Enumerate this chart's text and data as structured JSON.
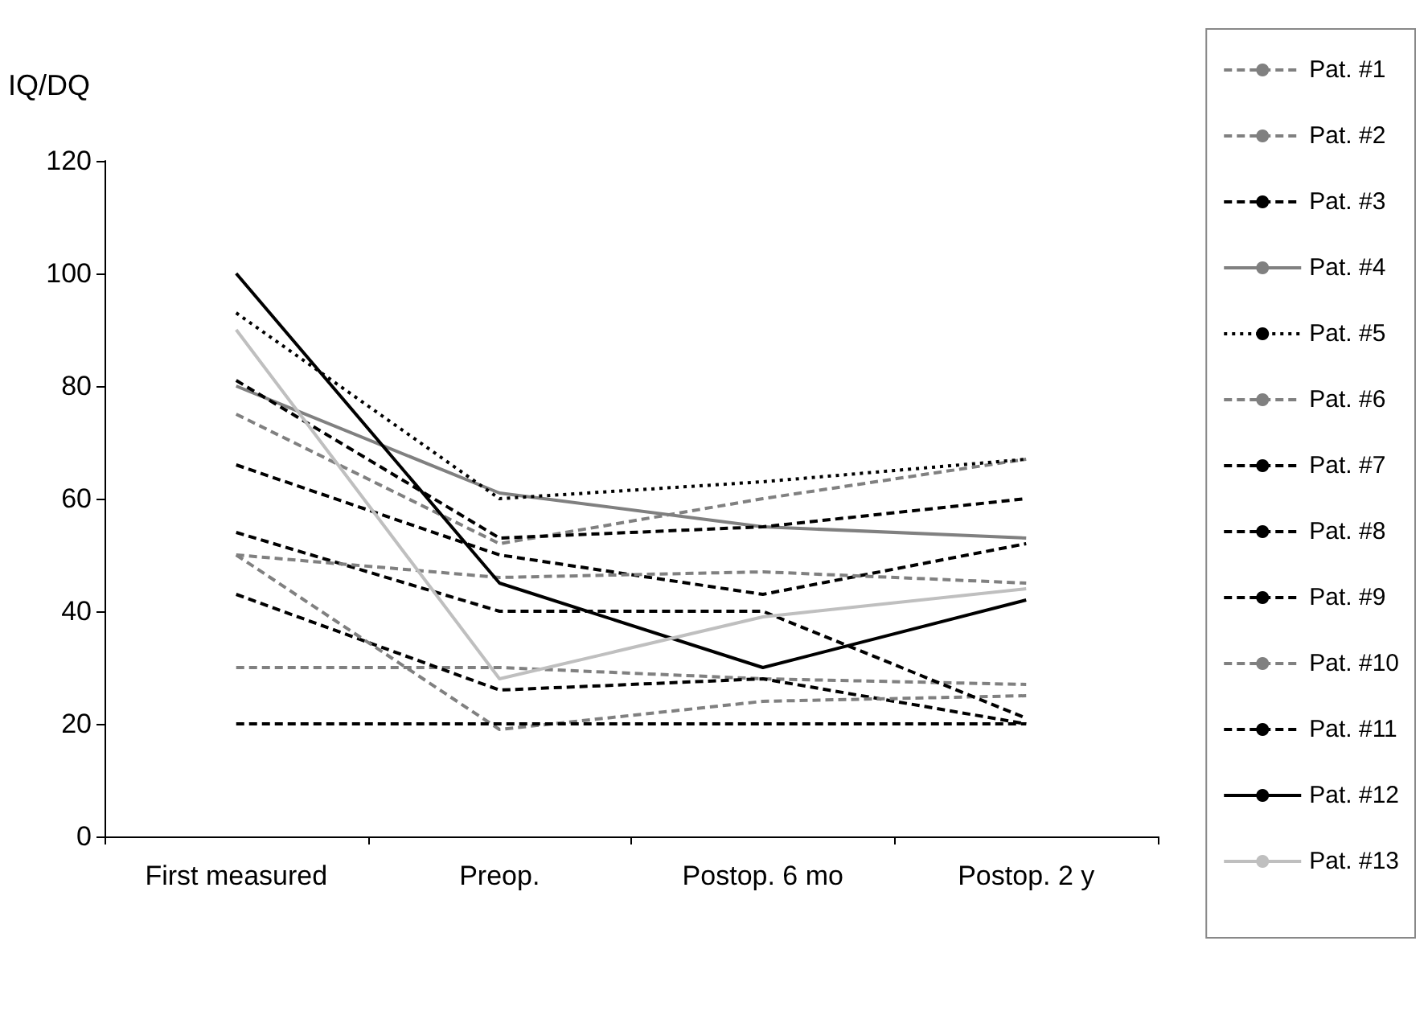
{
  "chart_data": {
    "type": "line",
    "ylabel": "IQ/DQ",
    "categories": [
      "First measured",
      "Preop.",
      "Postop. 6 mo",
      "Postop. 2 y"
    ],
    "ylim": [
      0,
      120
    ],
    "yticks": [
      0,
      20,
      40,
      60,
      80,
      100,
      120
    ],
    "grid": false,
    "legend": "right",
    "marker": "none",
    "series": [
      {
        "name": "Pat. #1",
        "color": "#808080",
        "line_style": "dashed",
        "values": [
          75,
          52,
          60,
          67
        ]
      },
      {
        "name": "Pat. #2",
        "color": "#808080",
        "line_style": "dashed",
        "values": [
          30,
          30,
          28,
          27
        ]
      },
      {
        "name": "Pat. #3",
        "color": "#000000",
        "line_style": "dashed",
        "values": [
          43,
          26,
          28,
          20
        ]
      },
      {
        "name": "Pat. #4",
        "color": "#808080",
        "line_style": "solid",
        "values": [
          80,
          61,
          55,
          53
        ]
      },
      {
        "name": "Pat. #5",
        "color": "#000000",
        "line_style": "dotted",
        "values": [
          93,
          60,
          63,
          67
        ]
      },
      {
        "name": "Pat. #6",
        "color": "#808080",
        "line_style": "dashed",
        "values": [
          50,
          19,
          24,
          25
        ]
      },
      {
        "name": "Pat. #7",
        "color": "#000000",
        "line_style": "dashed",
        "values": [
          20,
          20,
          20,
          20
        ]
      },
      {
        "name": "Pat. #8",
        "color": "#000000",
        "line_style": "dashed",
        "values": [
          54,
          40,
          40,
          21
        ]
      },
      {
        "name": "Pat. #9",
        "color": "#000000",
        "line_style": "dashed",
        "values": [
          66,
          50,
          43,
          52
        ]
      },
      {
        "name": "Pat. #10",
        "color": "#808080",
        "line_style": "dashed",
        "values": [
          50,
          46,
          47,
          45
        ]
      },
      {
        "name": "Pat. #11",
        "color": "#000000",
        "line_style": "dashed",
        "values": [
          81,
          53,
          55,
          60
        ]
      },
      {
        "name": "Pat. #12",
        "color": "#000000",
        "line_style": "solid",
        "values": [
          100,
          45,
          30,
          42
        ]
      },
      {
        "name": "Pat. #13",
        "color": "#bfbfbf",
        "line_style": "solid",
        "values": [
          90,
          28,
          39,
          44
        ]
      }
    ]
  }
}
